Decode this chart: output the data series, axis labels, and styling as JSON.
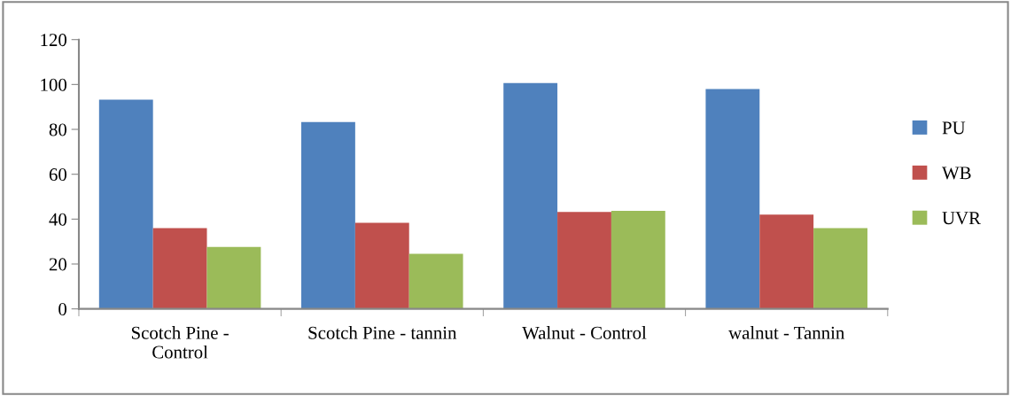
{
  "chart_data": {
    "type": "bar",
    "categories": [
      "Scotch Pine -\nControl",
      "Scotch Pine - tannin",
      "Walnut - Control",
      "walnut - Tannin"
    ],
    "series": [
      {
        "name": "PU",
        "color": "#4f81bd",
        "values": [
          93.2,
          83.3,
          100.6,
          98
        ]
      },
      {
        "name": "WB",
        "color": "#c0504d",
        "values": [
          36,
          38.4,
          43.2,
          42
        ]
      },
      {
        "name": "UVR",
        "color": "#9bbb59",
        "values": [
          27.6,
          24.5,
          43.7,
          36
        ]
      }
    ],
    "ylim": [
      0,
      120
    ],
    "yticks": [
      0,
      20,
      40,
      60,
      80,
      100,
      120
    ],
    "grid": false,
    "legend": "right"
  }
}
